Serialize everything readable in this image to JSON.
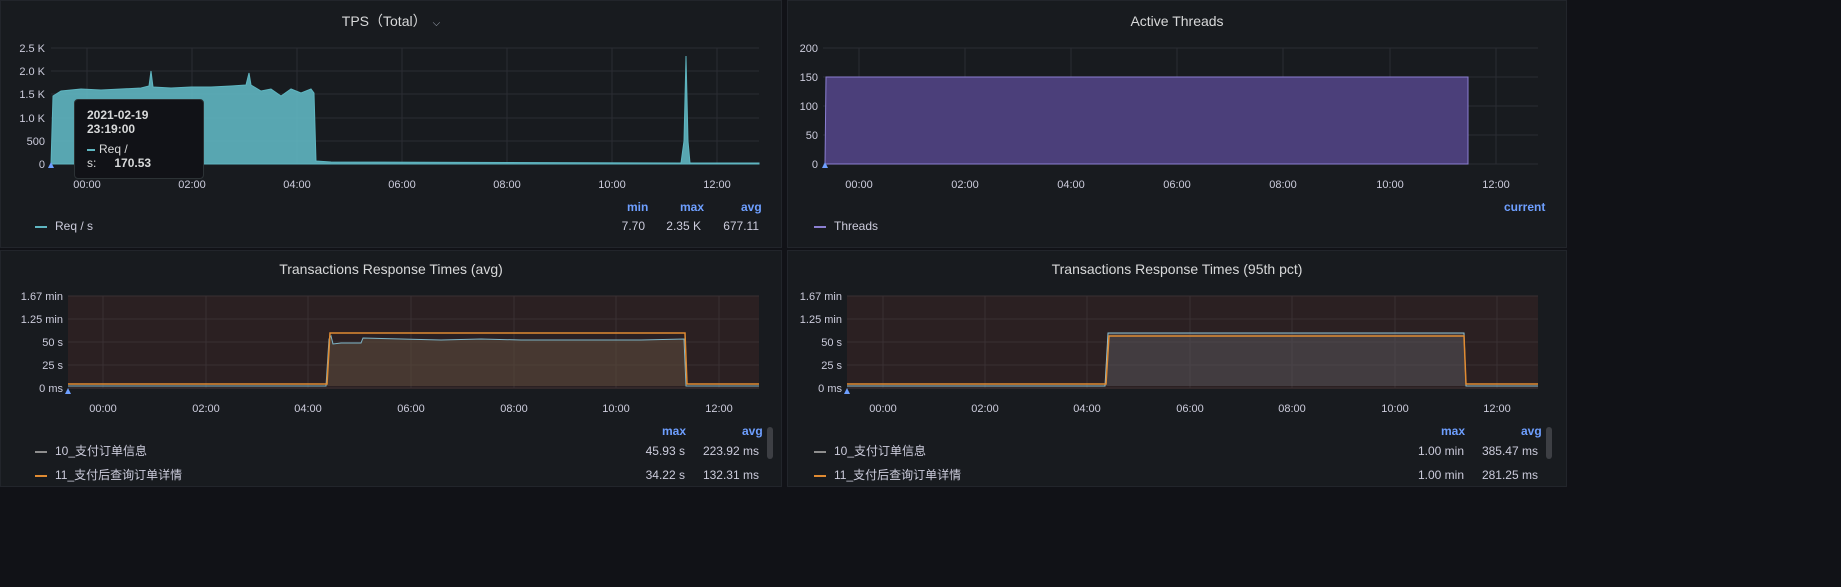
{
  "panels": {
    "tps": {
      "title": "TPS（Total）",
      "y_ticks": [
        "2.5 K",
        "2.0 K",
        "1.5 K",
        "1.0 K",
        "500",
        "0"
      ],
      "x_ticks": [
        "00:00",
        "02:00",
        "04:00",
        "06:00",
        "08:00",
        "10:00",
        "12:00"
      ],
      "legend_headers": {
        "min": "min",
        "max": "max",
        "avg": "avg"
      },
      "series": [
        {
          "name": "Req / s",
          "color": "#5fb6c1",
          "min": "7.70",
          "max": "2.35 K",
          "avg": "677.11"
        }
      ],
      "tooltip": {
        "time": "2021-02-19 23:19:00",
        "label": "Req / s:",
        "value": "170.53"
      }
    },
    "threads": {
      "title": "Active Threads",
      "y_ticks": [
        "200",
        "150",
        "100",
        "50",
        "0"
      ],
      "x_ticks": [
        "00:00",
        "02:00",
        "04:00",
        "06:00",
        "08:00",
        "10:00",
        "12:00"
      ],
      "legend_headers": {
        "current": "current"
      },
      "series": [
        {
          "name": "Threads",
          "color": "#8b7fd1"
        }
      ]
    },
    "rt_avg": {
      "title": "Transactions Response Times (avg)",
      "y_ticks": [
        "1.67 min",
        "1.25 min",
        "50 s",
        "25 s",
        "0 ms"
      ],
      "x_ticks": [
        "00:00",
        "02:00",
        "04:00",
        "06:00",
        "08:00",
        "10:00",
        "12:00"
      ],
      "legend_headers": {
        "max": "max",
        "avg": "avg"
      },
      "series": [
        {
          "name": "10_支付订单信息",
          "color": "#8e8e8e",
          "max": "45.93 s",
          "avg": "223.92 ms"
        },
        {
          "name": "11_支付后查询订单详情",
          "color": "#e08b32",
          "max": "34.22 s",
          "avg": "132.31 ms"
        }
      ]
    },
    "rt_95": {
      "title": "Transactions Response Times (95th pct)",
      "y_ticks": [
        "1.67 min",
        "1.25 min",
        "50 s",
        "25 s",
        "0 ms"
      ],
      "x_ticks": [
        "00:00",
        "02:00",
        "04:00",
        "06:00",
        "08:00",
        "10:00",
        "12:00"
      ],
      "legend_headers": {
        "max": "max",
        "avg": "avg"
      },
      "series": [
        {
          "name": "10_支付订单信息",
          "color": "#8e8e8e",
          "max": "1.00 min",
          "avg": "385.47 ms"
        },
        {
          "name": "11_支付后查询订单详情",
          "color": "#e08b32",
          "max": "1.00 min",
          "avg": "281.25 ms"
        }
      ]
    }
  },
  "colors": {
    "background": "#111217",
    "panel": "#181b1f",
    "grid": "#2a2d33",
    "accent": "#6e9fff",
    "tps_fill": "#5fb6c1",
    "threads_fill": "#4b3f7a"
  }
}
